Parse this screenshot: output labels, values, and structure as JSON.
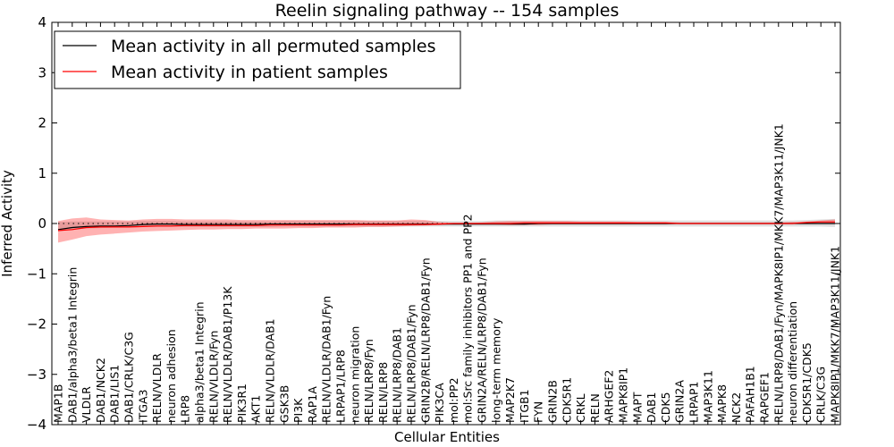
{
  "chart_data": {
    "type": "line",
    "title": "Reelin signaling pathway -- 154 samples",
    "xlabel": "Cellular Entities",
    "ylabel": "Inferred Activity",
    "ylim": [
      -4,
      4
    ],
    "yticks": [
      "4",
      "3",
      "2",
      "1",
      "0",
      "−1",
      "−2",
      "−3",
      "−4"
    ],
    "ytick_values": [
      4,
      3,
      2,
      1,
      0,
      -1,
      -2,
      -3,
      -4
    ],
    "grid": false,
    "legend": {
      "placement": "top-left",
      "entries": [
        {
          "label": "Mean activity in all permuted samples",
          "color": "#000000"
        },
        {
          "label": "Mean activity in patient samples",
          "color": "#ff0000"
        }
      ]
    },
    "categories": [
      "MAP1B",
      "DAB1/alpha3/beta1 Integrin",
      "VLDLR",
      "DAB1/NCK2",
      "DAB1/LIS1",
      "DAB1/CRLK/C3G",
      "ITGA3",
      "RELN/VLDLR",
      "neuron adhesion",
      "LRP8",
      "alpha3/beta1 Integrin",
      "RELN/VLDLR/Fyn",
      "RELN/VLDLR/DAB1/P13K",
      "PIK3R1",
      "AKT1",
      "RELN/VLDLR/DAB1",
      "GSK3B",
      "PI3K",
      "RAP1A",
      "RELN/VLDLR/DAB1/Fyn",
      "LRPAP1/LRP8",
      "neuron migration",
      "RELN/LRP8/Fyn",
      "RELN/LRP8",
      "RELN/LRP8/DAB1",
      "RELN/LRP8/DAB1/Fyn",
      "GRIN2B/RELN/LRP8/DAB1/Fyn",
      "PIK3CA",
      "mol:PP2",
      "mol:Src family inhibitors PP1 and PP2",
      "GRIN2A/RELN/LRP8/DAB1/Fyn",
      "long-term memory",
      "MAP2K7",
      "ITGB1",
      "FYN",
      "GRIN2B",
      "CDK5R1",
      "CRKL",
      "RELN",
      "ARHGEF2",
      "MAPK8IP1",
      "MAPT",
      "DAB1",
      "CDK5",
      "GRIN2A",
      "LRPAP1",
      "MAP3K11",
      "MAPK8",
      "NCK2",
      "PAFAH1B1",
      "RAPGEF1",
      "RELN/LRP8/DAB1/Fyn/MAPK8IP1/MKK7/MAP3K11/JNK1",
      "neuron differentiation",
      "CDK5R1/CDK5",
      "CRLK/C3G",
      "MAPK8IP1/MKK7/MAP3K11/JNK1"
    ],
    "series": [
      {
        "name": "Mean activity in all permuted samples",
        "color": "#000000",
        "values": [
          -0.12,
          -0.08,
          -0.06,
          -0.05,
          -0.05,
          -0.04,
          -0.02,
          -0.01,
          -0.01,
          -0.02,
          -0.02,
          -0.02,
          -0.02,
          -0.02,
          -0.02,
          -0.01,
          -0.01,
          -0.01,
          -0.01,
          -0.01,
          -0.01,
          -0.01,
          -0.01,
          -0.01,
          -0.01,
          -0.01,
          -0.01,
          -0.01,
          -0.01,
          -0.01,
          -0.01,
          -0.01,
          -0.01,
          -0.01,
          0,
          0,
          0,
          0,
          0,
          0,
          0,
          0,
          0,
          0,
          0,
          0,
          0,
          0,
          0,
          0,
          0,
          0,
          0,
          0,
          0,
          0
        ],
        "band_low": [
          -0.16,
          -0.12,
          -0.1,
          -0.09,
          -0.08,
          -0.08,
          -0.07,
          -0.07,
          -0.07,
          -0.07,
          -0.07,
          -0.07,
          -0.07,
          -0.07,
          -0.07,
          -0.07,
          -0.06,
          -0.06,
          -0.06,
          -0.06,
          -0.06,
          -0.06,
          -0.06,
          -0.06,
          -0.06,
          -0.06,
          -0.06,
          -0.06,
          -0.06,
          -0.06,
          -0.06,
          -0.06,
          -0.06,
          -0.06,
          -0.06,
          -0.06,
          -0.06,
          -0.06,
          -0.06,
          -0.06,
          -0.06,
          -0.06,
          -0.06,
          -0.06,
          -0.06,
          -0.06,
          -0.06,
          -0.06,
          -0.06,
          -0.06,
          -0.06,
          -0.06,
          -0.06,
          -0.06,
          -0.06,
          -0.07
        ],
        "band_high": [
          0.03,
          0.04,
          0.04,
          0.04,
          0.04,
          0.04,
          0.05,
          0.05,
          0.05,
          0.04,
          0.04,
          0.04,
          0.04,
          0.04,
          0.04,
          0.04,
          0.05,
          0.05,
          0.05,
          0.05,
          0.05,
          0.05,
          0.05,
          0.05,
          0.05,
          0.05,
          0.05,
          0.05,
          0.05,
          0.05,
          0.05,
          0.06,
          0.06,
          0.06,
          0.06,
          0.06,
          0.06,
          0.06,
          0.06,
          0.06,
          0.06,
          0.06,
          0.06,
          0.06,
          0.06,
          0.06,
          0.06,
          0.06,
          0.06,
          0.06,
          0.06,
          0.06,
          0.06,
          0.07,
          0.08,
          0.09
        ]
      },
      {
        "name": "Mean activity in patient samples",
        "color": "#ff0000",
        "values": [
          -0.14,
          -0.12,
          -0.08,
          -0.07,
          -0.07,
          -0.07,
          -0.06,
          -0.05,
          -0.05,
          -0.04,
          -0.04,
          -0.04,
          -0.04,
          -0.04,
          -0.04,
          -0.03,
          -0.03,
          -0.03,
          -0.03,
          -0.03,
          -0.03,
          -0.02,
          -0.02,
          -0.02,
          -0.02,
          -0.02,
          -0.02,
          -0.01,
          0,
          0,
          0,
          0,
          0,
          0.01,
          0.01,
          0.01,
          0.01,
          0.01,
          0.01,
          0.01,
          0.01,
          0.01,
          0.01,
          0.01,
          0,
          0,
          0,
          0,
          0,
          0,
          0,
          0,
          0,
          0.02,
          0.03,
          0.03
        ],
        "band_low": [
          -0.38,
          -0.32,
          -0.25,
          -0.22,
          -0.2,
          -0.18,
          -0.16,
          -0.15,
          -0.14,
          -0.13,
          -0.12,
          -0.12,
          -0.11,
          -0.11,
          -0.1,
          -0.1,
          -0.1,
          -0.09,
          -0.09,
          -0.08,
          -0.08,
          -0.08,
          -0.07,
          -0.07,
          -0.06,
          -0.05,
          -0.04,
          -0.03,
          -0.01,
          -0.01,
          -0.02,
          -0.02,
          -0.03,
          -0.03,
          -0.03,
          -0.02,
          -0.02,
          -0.02,
          -0.02,
          -0.02,
          -0.02,
          -0.02,
          -0.02,
          -0.02,
          -0.01,
          -0.01,
          -0.01,
          -0.01,
          -0.01,
          -0.01,
          -0.01,
          -0.01,
          -0.01,
          0,
          0,
          -0.01
        ],
        "band_high": [
          0.05,
          0.1,
          0.12,
          0.08,
          0.07,
          0.06,
          0.08,
          0.09,
          0.09,
          0.08,
          0.08,
          0.08,
          0.08,
          0.07,
          0.07,
          0.07,
          0.07,
          0.07,
          0.07,
          0.07,
          0.07,
          0.07,
          0.06,
          0.06,
          0.06,
          0.08,
          0.07,
          0.03,
          0.01,
          0.01,
          0.02,
          0.04,
          0.05,
          0.05,
          0.05,
          0.05,
          0.05,
          0.04,
          0.04,
          0.04,
          0.04,
          0.03,
          0.03,
          0.03,
          0.02,
          0.02,
          0.02,
          0.02,
          0.02,
          0.02,
          0.02,
          0.02,
          0.03,
          0.04,
          0.06,
          0.08
        ]
      }
    ],
    "reference_line": {
      "style": "dotted",
      "value": 0,
      "color": "#000000"
    }
  }
}
